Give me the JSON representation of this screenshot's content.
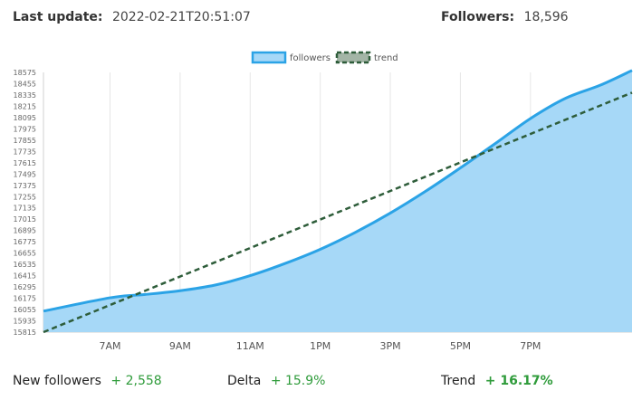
{
  "header": {
    "last_update_label": "Last update:",
    "last_update_value": "2022-02-21T20:51:07",
    "followers_label": "Followers:",
    "followers_value": "18,596"
  },
  "colors": {
    "followers_line": "#2ba3e6",
    "followers_fill": "#a6d8f7",
    "trend_line": "#2e5d3a",
    "trend_legend_fill": "#a3b5a6",
    "grid": "#e6e6e6",
    "positive": "#2e9b3a"
  },
  "chart_data": {
    "type": "area",
    "legend_position": "top-center",
    "grid": true,
    "x_ticks": [
      "7AM",
      "9AM",
      "11AM",
      "1PM",
      "3PM",
      "5PM",
      "7PM"
    ],
    "x_tick_hours": [
      7,
      9,
      11,
      13,
      15,
      17,
      19
    ],
    "xlim": [
      5.1,
      21.9
    ],
    "y_ticks": [
      15815,
      15935,
      16055,
      16175,
      16295,
      16415,
      16535,
      16655,
      16775,
      16895,
      17015,
      17135,
      17255,
      17375,
      17495,
      17615,
      17735,
      17855,
      17975,
      18095,
      18215,
      18335,
      18455,
      18575
    ],
    "ylim": [
      15815,
      18575
    ],
    "series": [
      {
        "name": "followers",
        "style": "area",
        "x": [
          5.1,
          7.0,
          8.0,
          9.0,
          10.0,
          11.0,
          12.0,
          13.0,
          14.0,
          15.0,
          16.0,
          17.0,
          18.0,
          19.0,
          20.0,
          21.0,
          21.9
        ],
        "y": [
          16038,
          16180,
          16215,
          16255,
          16315,
          16415,
          16545,
          16695,
          16875,
          17080,
          17310,
          17560,
          17820,
          18085,
          18300,
          18440,
          18596
        ]
      },
      {
        "name": "trend",
        "style": "dashed-line",
        "x": [
          5.1,
          21.9
        ],
        "y": [
          15815,
          18360
        ]
      }
    ]
  },
  "stats": {
    "new_followers_label": "New followers",
    "new_followers_value": "+ 2,558",
    "delta_label": "Delta",
    "delta_value": "+ 15.9%",
    "trend_label": "Trend",
    "trend_value": "+ 16.17%"
  }
}
